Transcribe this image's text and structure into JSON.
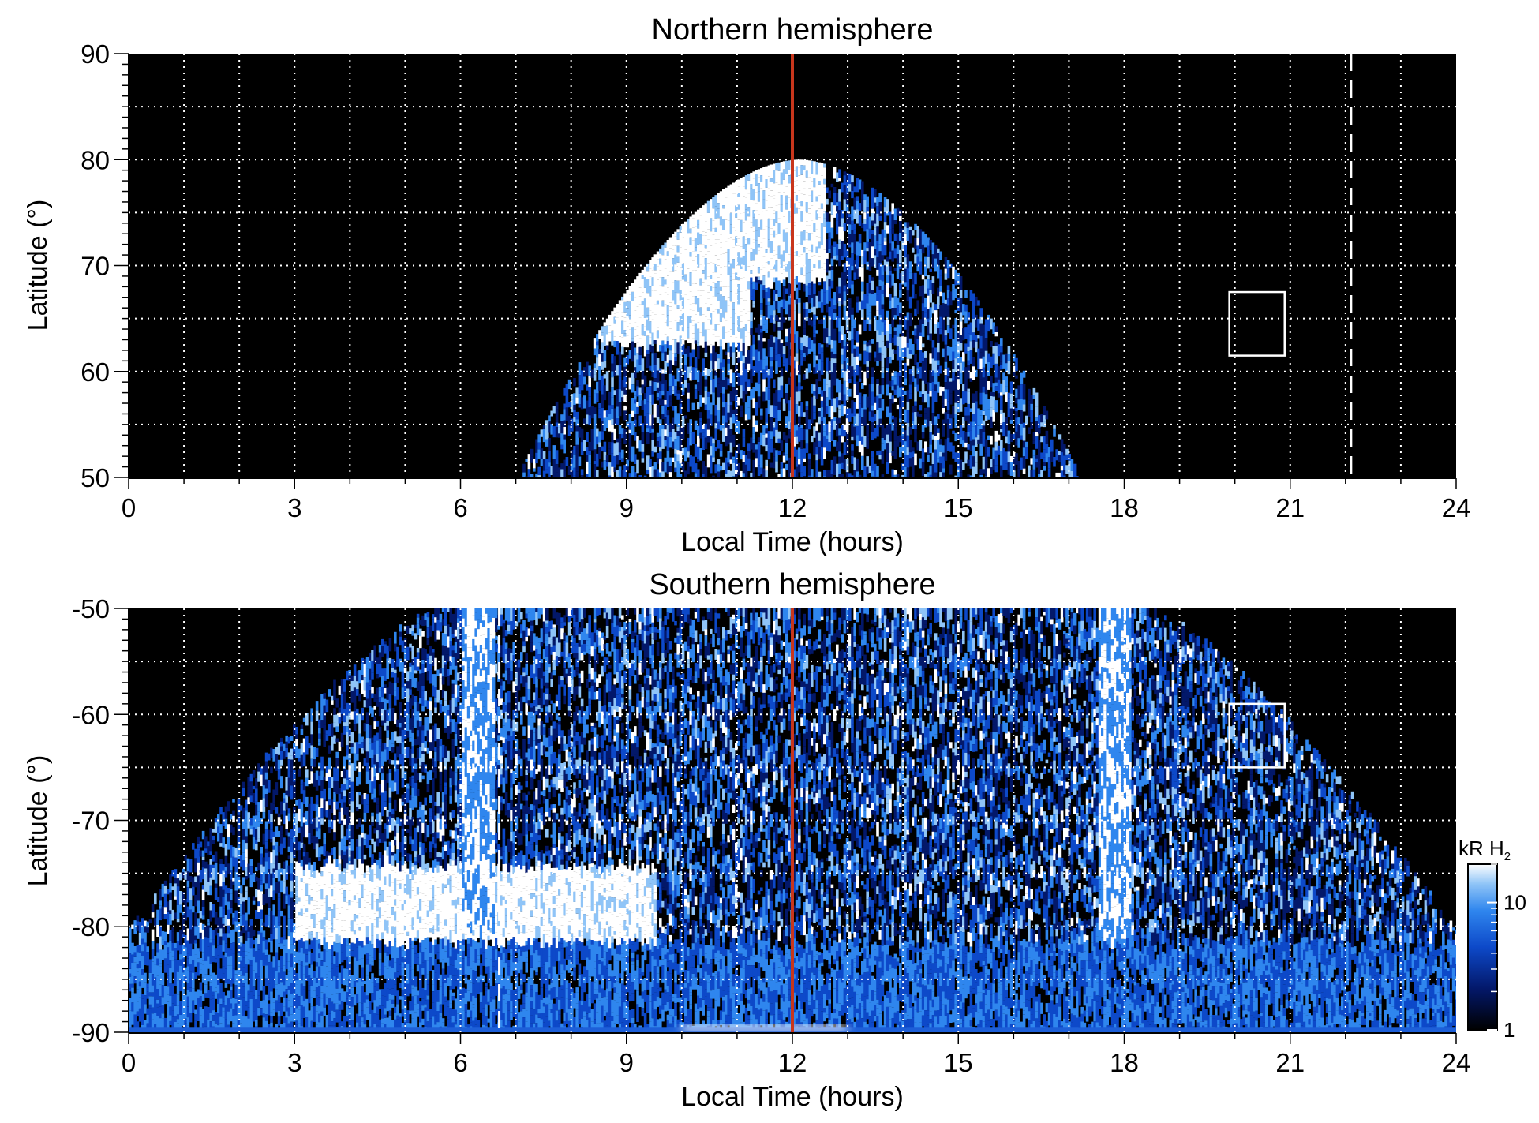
{
  "chart_data": [
    {
      "type": "heatmap",
      "title": "Northern hemisphere",
      "xlabel": "Local Time (hours)",
      "ylabel": "Latitude (°)",
      "xlim": [
        0,
        24
      ],
      "ylim": [
        50,
        90
      ],
      "xticks": [
        "0",
        "3",
        "6",
        "9",
        "12",
        "15",
        "18",
        "21",
        "24"
      ],
      "yticks": [
        "50",
        "60",
        "70",
        "80",
        "90"
      ],
      "grid": true,
      "background": "#000000",
      "noon_line": {
        "x": 12,
        "color": "#c8361c"
      },
      "dashed_line_x": 22.1,
      "box": {
        "x": [
          19.9,
          20.9
        ],
        "y": [
          61.5,
          67.5
        ]
      },
      "coverage": {
        "x_range": [
          7,
          17.2
        ],
        "note_shape": "dome, top latitude ~80 at noon falling to ~50 at edges"
      },
      "bright_regions": [
        {
          "x": [
            8.5,
            11.2
          ],
          "y": [
            63,
            79
          ],
          "intensity": "high"
        },
        {
          "x": [
            11.2,
            12.6
          ],
          "y": [
            69,
            80
          ],
          "intensity": "high"
        }
      ]
    },
    {
      "type": "heatmap",
      "title": "Southern hemisphere",
      "xlabel": "Local Time (hours)",
      "ylabel": "Latitude (°)",
      "xlim": [
        0,
        24
      ],
      "ylim": [
        -90,
        -50
      ],
      "xticks": [
        "0",
        "3",
        "6",
        "9",
        "12",
        "15",
        "18",
        "21",
        "24"
      ],
      "yticks": [
        "-50",
        "-60",
        "-70",
        "-80",
        "-90"
      ],
      "grid": true,
      "background": "#000000",
      "noon_line": {
        "x": 12,
        "color": "#c8361c"
      },
      "dashed_line_x": 6.7,
      "box": {
        "x": [
          19.9,
          20.9
        ],
        "y": [
          -65,
          -59
        ]
      },
      "coverage": {
        "x_range": [
          0,
          24
        ],
        "note_shape": "inverted dome, -50 between ~5.5 and ~19 hours, -80 at edges"
      },
      "bright_regions": [
        {
          "x": [
            3,
            9.5
          ],
          "y": [
            -83,
            -74
          ],
          "intensity": "high"
        },
        {
          "x": [
            6,
            6.6
          ],
          "y": [
            -80,
            -50
          ],
          "intensity": "medium"
        },
        {
          "x": [
            17.5,
            18.1
          ],
          "y": [
            -85,
            -50
          ],
          "intensity": "medium"
        }
      ]
    }
  ],
  "colorbar": {
    "label_kR": "kR H",
    "label_sub": "2",
    "tick_labels": [
      "10",
      "1"
    ],
    "tick_values": [
      10,
      1
    ],
    "range": [
      1,
      20
    ],
    "scale": "log",
    "colors": [
      "#000000",
      "#03186a",
      "#0d49c9",
      "#2f86ee",
      "#8fc4f7",
      "#ffffff"
    ]
  }
}
